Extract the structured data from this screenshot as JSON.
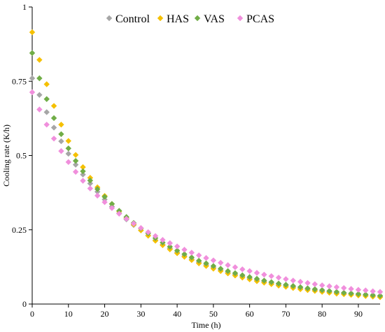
{
  "chart_data": {
    "type": "scatter",
    "xlabel": "Time (h)",
    "ylabel": "Cooling rate (K/h)",
    "xlim": [
      0,
      96
    ],
    "ylim": [
      0,
      1
    ],
    "xticks": [
      0,
      10,
      20,
      30,
      40,
      50,
      60,
      70,
      80,
      90
    ],
    "yticks": [
      0,
      0.25,
      0.5,
      0.75,
      1
    ],
    "ytick_labels": [
      "0",
      "0.25",
      "0.5",
      "0.75",
      "1"
    ],
    "grid": false,
    "legend_position": "top-center",
    "x": [
      0,
      2,
      4,
      6,
      8,
      10,
      12,
      14,
      16,
      18,
      20,
      22,
      24,
      26,
      28,
      30,
      32,
      34,
      36,
      38,
      40,
      42,
      44,
      46,
      48,
      50,
      52,
      54,
      56,
      58,
      60,
      62,
      64,
      66,
      68,
      70,
      72,
      74,
      76,
      78,
      80,
      82,
      84,
      86,
      88,
      90,
      92,
      94,
      96
    ],
    "series": [
      {
        "name": "Control",
        "color": "#a6a6a6",
        "values": [
          0.76,
          0.704,
          0.646,
          0.594,
          0.548,
          0.506,
          0.469,
          0.436,
          0.406,
          0.378,
          0.352,
          0.328,
          0.306,
          0.285,
          0.266,
          0.248,
          0.231,
          0.215,
          0.2,
          0.187,
          0.174,
          0.162,
          0.151,
          0.141,
          0.132,
          0.123,
          0.115,
          0.107,
          0.1,
          0.093,
          0.087,
          0.081,
          0.076,
          0.071,
          0.066,
          0.062,
          0.058,
          0.054,
          0.05,
          0.047,
          0.044,
          0.041,
          0.038,
          0.036,
          0.034,
          0.032,
          0.03,
          0.028,
          0.026
        ]
      },
      {
        "name": "HAS",
        "color": "#f5c000",
        "values": [
          0.915,
          0.822,
          0.74,
          0.667,
          0.604,
          0.549,
          0.502,
          0.461,
          0.425,
          0.393,
          0.364,
          0.337,
          0.312,
          0.289,
          0.268,
          0.248,
          0.23,
          0.213,
          0.198,
          0.184,
          0.171,
          0.159,
          0.148,
          0.137,
          0.128,
          0.119,
          0.111,
          0.103,
          0.096,
          0.089,
          0.083,
          0.077,
          0.072,
          0.067,
          0.062,
          0.058,
          0.054,
          0.05,
          0.047,
          0.044,
          0.041,
          0.038,
          0.035,
          0.033,
          0.031,
          0.029,
          0.027,
          0.025,
          0.023
        ]
      },
      {
        "name": "VAS",
        "color": "#70ad47",
        "values": [
          0.845,
          0.76,
          0.69,
          0.626,
          0.572,
          0.524,
          0.482,
          0.447,
          0.416,
          0.387,
          0.361,
          0.337,
          0.314,
          0.293,
          0.273,
          0.255,
          0.238,
          0.222,
          0.207,
          0.193,
          0.18,
          0.168,
          0.157,
          0.146,
          0.137,
          0.128,
          0.119,
          0.111,
          0.104,
          0.097,
          0.091,
          0.085,
          0.079,
          0.074,
          0.069,
          0.065,
          0.061,
          0.057,
          0.053,
          0.05,
          0.047,
          0.044,
          0.041,
          0.038,
          0.036,
          0.034,
          0.032,
          0.03,
          0.028
        ]
      },
      {
        "name": "PCAS",
        "color": "#f08fdc",
        "values": [
          0.713,
          0.655,
          0.604,
          0.557,
          0.515,
          0.478,
          0.445,
          0.415,
          0.389,
          0.365,
          0.343,
          0.323,
          0.304,
          0.287,
          0.271,
          0.256,
          0.242,
          0.229,
          0.216,
          0.205,
          0.194,
          0.183,
          0.173,
          0.164,
          0.155,
          0.147,
          0.139,
          0.131,
          0.124,
          0.117,
          0.111,
          0.105,
          0.099,
          0.094,
          0.089,
          0.084,
          0.079,
          0.075,
          0.071,
          0.067,
          0.063,
          0.06,
          0.057,
          0.054,
          0.051,
          0.048,
          0.046,
          0.043,
          0.041
        ]
      }
    ]
  }
}
